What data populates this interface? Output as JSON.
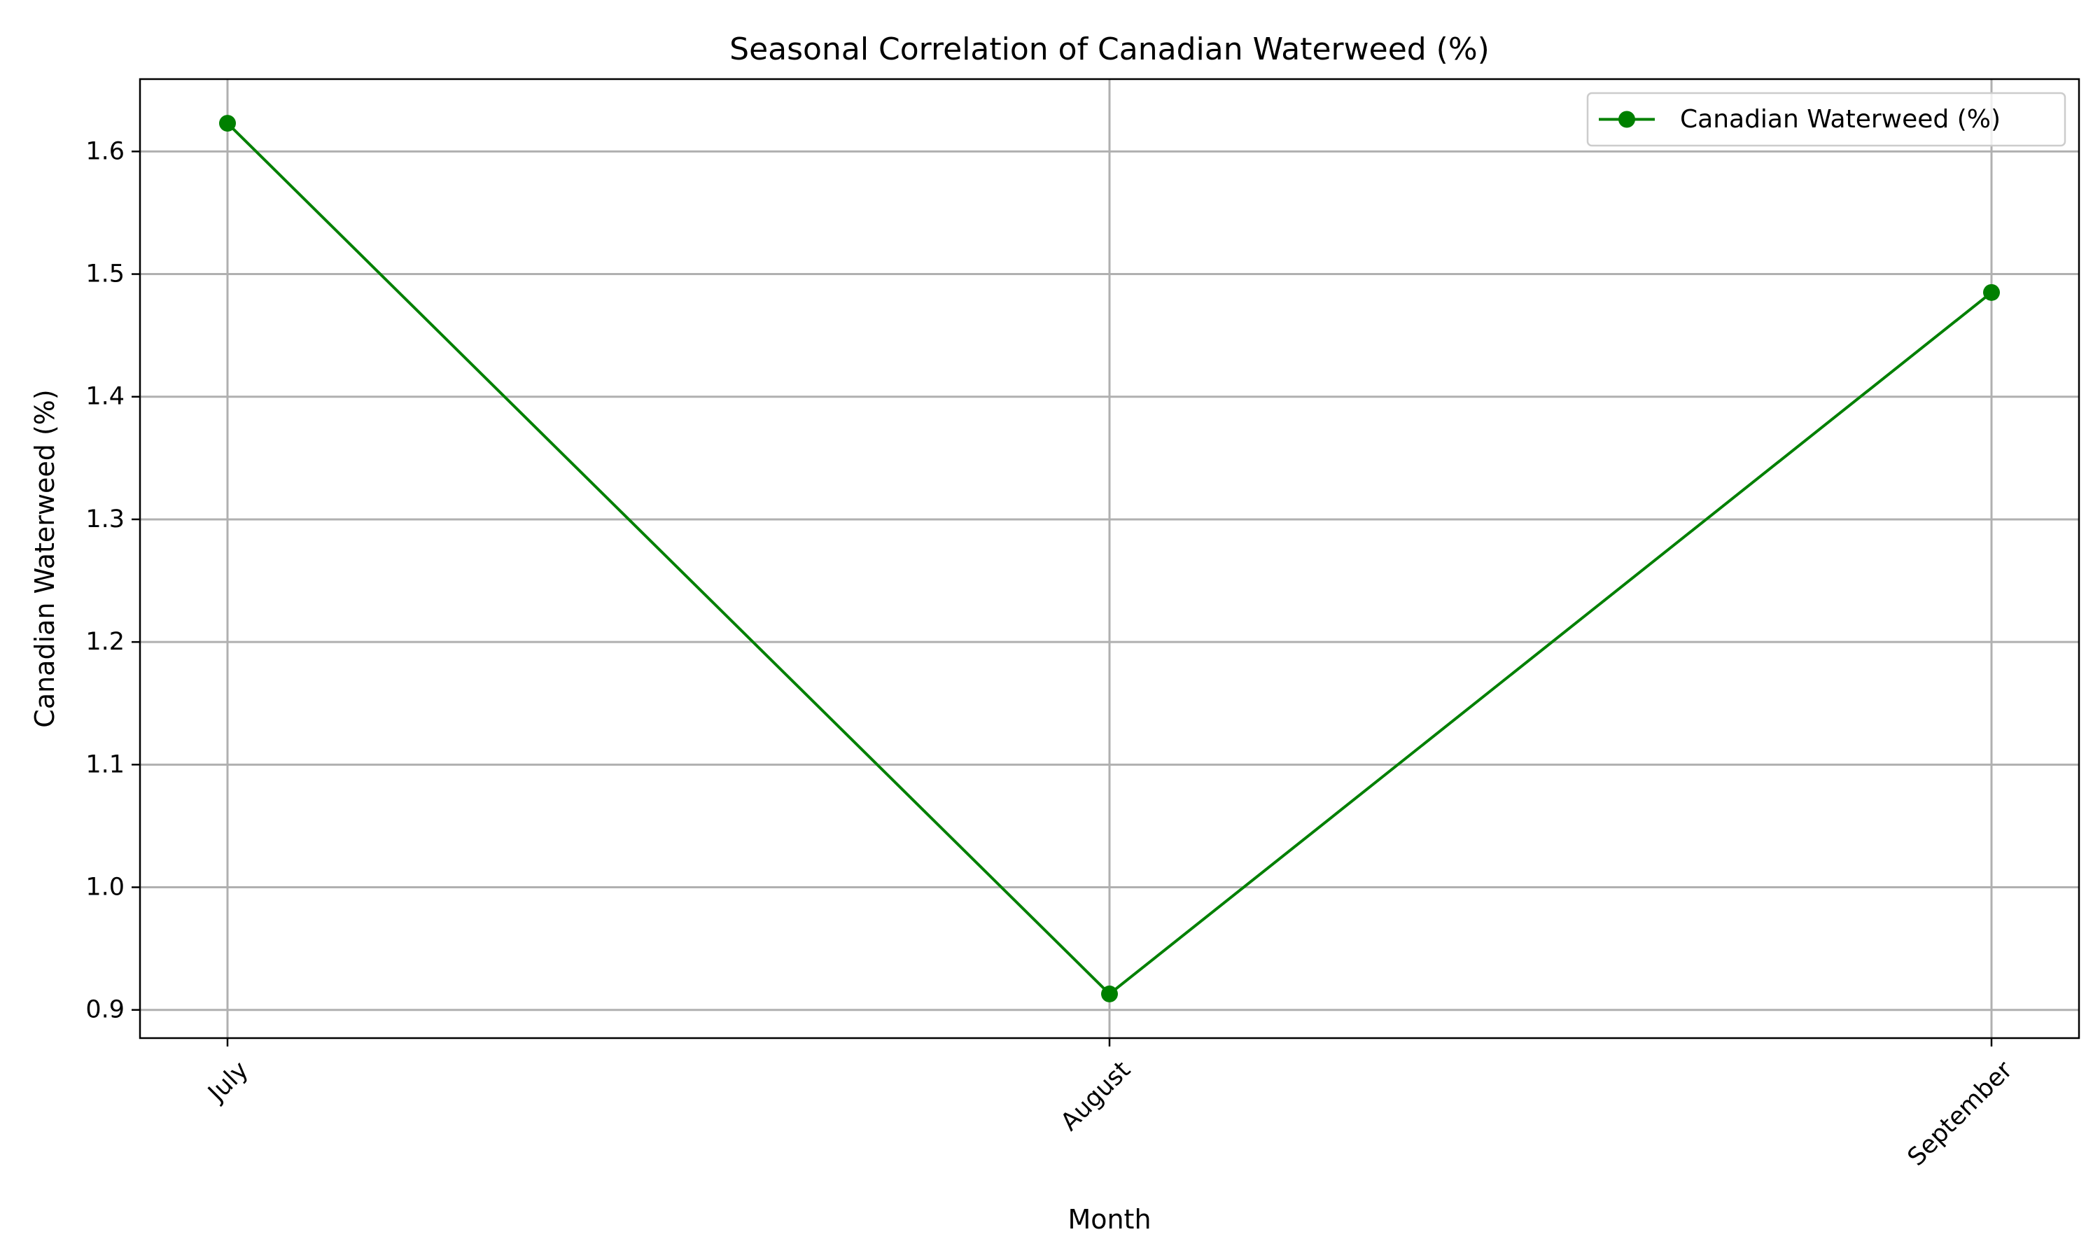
{
  "chart_data": {
    "type": "line",
    "title": "Seasonal Correlation of Canadian Waterweed (%)",
    "xlabel": "Month",
    "ylabel": "Canadian Waterweed (%)",
    "categories": [
      "July",
      "August",
      "September"
    ],
    "series": [
      {
        "name": "Canadian Waterweed (%)",
        "values": [
          1.623,
          0.913,
          1.485
        ],
        "color": "#008000",
        "marker": "circle"
      }
    ],
    "ylim": [
      0.877,
      1.659
    ],
    "yticks": [
      0.9,
      1.0,
      1.1,
      1.2,
      1.3,
      1.4,
      1.5,
      1.6
    ],
    "ytick_labels": [
      "0.9",
      "1.0",
      "1.1",
      "1.2",
      "1.3",
      "1.4",
      "1.5",
      "1.6"
    ],
    "grid": true,
    "legend_position": "top-right",
    "xtick_rotation": 45
  }
}
